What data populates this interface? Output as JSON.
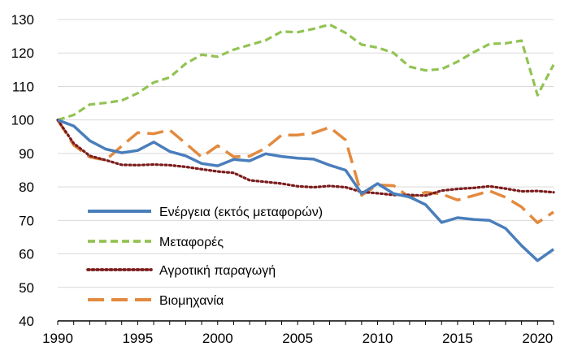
{
  "chart_data": {
    "type": "line",
    "title": "",
    "xlabel": "",
    "ylabel": "",
    "xlim": [
      1990,
      2021
    ],
    "ylim": [
      40,
      130
    ],
    "x_ticks": [
      1990,
      1995,
      2000,
      2005,
      2010,
      2015,
      2020
    ],
    "y_ticks": [
      40,
      50,
      60,
      70,
      80,
      90,
      100,
      110,
      120,
      130
    ],
    "grid": "horizontal",
    "legend_position": "bottom-left",
    "x": [
      1990,
      1991,
      1992,
      1993,
      1994,
      1995,
      1996,
      1997,
      1998,
      1999,
      2000,
      2001,
      2002,
      2003,
      2004,
      2005,
      2006,
      2007,
      2008,
      2009,
      2010,
      2011,
      2012,
      2013,
      2014,
      2015,
      2016,
      2017,
      2018,
      2019,
      2020,
      2021
    ],
    "series": [
      {
        "name": "Ενέργεια (εκτός μεταφορών)",
        "color": "#4a7ebb",
        "style": "solid",
        "values": [
          100,
          98.2,
          93.8,
          91.3,
          90.2,
          90.9,
          93.4,
          90.6,
          89.3,
          87.0,
          86.3,
          88.2,
          87.8,
          89.9,
          89.1,
          88.6,
          88.3,
          86.5,
          85.0,
          78.0,
          81.0,
          78.0,
          77.0,
          74.7,
          69.4,
          70.8,
          70.3,
          70.0,
          67.6,
          62.5,
          58.0,
          61.4
        ]
      },
      {
        "name": "Μεταφορές",
        "color": "#92c353",
        "style": "dashed",
        "values": [
          100,
          101.5,
          104.6,
          105.1,
          105.8,
          108.0,
          111.2,
          112.7,
          116.8,
          119.5,
          118.9,
          121.0,
          122.4,
          123.8,
          126.4,
          126.2,
          127.2,
          128.5,
          126.0,
          122.5,
          121.6,
          120.0,
          115.9,
          114.8,
          115.2,
          117.4,
          120.2,
          122.7,
          122.9,
          123.7,
          107.4,
          116.5
        ]
      },
      {
        "name": "Αγροτική παραγωγή",
        "color": "#7b1c1c",
        "style": "dotted",
        "values": [
          100,
          93.0,
          89.3,
          88.0,
          86.6,
          86.5,
          86.7,
          86.5,
          86.0,
          85.3,
          84.6,
          84.2,
          82.0,
          81.5,
          81.0,
          80.2,
          79.9,
          80.3,
          79.9,
          78.5,
          78.1,
          77.6,
          77.6,
          77.4,
          78.9,
          79.4,
          79.7,
          80.2,
          79.5,
          78.7,
          78.8,
          78.4
        ]
      },
      {
        "name": "Βιομηχανία",
        "color": "#e38a3f",
        "style": "longdash",
        "values": [
          100,
          92.5,
          88.9,
          88.0,
          92.2,
          96.2,
          95.9,
          97.0,
          93.0,
          88.9,
          92.3,
          89.0,
          89.2,
          91.6,
          95.5,
          95.5,
          96.1,
          97.8,
          94.0,
          77.5,
          80.6,
          80.4,
          76.9,
          78.4,
          77.9,
          76.1,
          77.4,
          78.8,
          76.9,
          74.0,
          69.3,
          72.5
        ]
      }
    ]
  }
}
